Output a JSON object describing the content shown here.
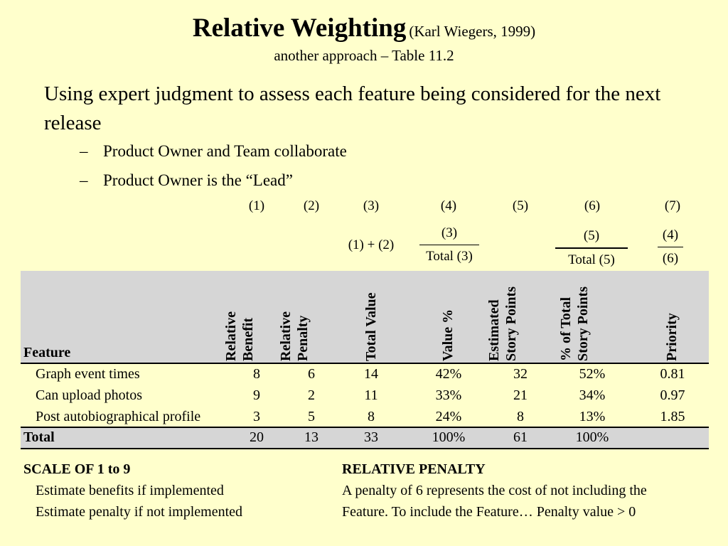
{
  "title": {
    "main": "Relative Weighting",
    "citation": "(Karl Wiegers, 1999)",
    "subtitle": "another approach – Table 11.2"
  },
  "intro": {
    "lead": "Using expert judgment to assess each feature being considered for the next release",
    "bullets": [
      "Product Owner and Team collaborate",
      "Product Owner is the “Lead”"
    ]
  },
  "columns": {
    "numbers": [
      "(1)",
      "(2)",
      "(3)",
      "(4)",
      "(5)",
      "(6)",
      "(7)"
    ],
    "formula_3": "(1) + (2)",
    "formula_4": {
      "num": "(3)",
      "den": "Total (3)"
    },
    "formula_6": {
      "num": "(5)",
      "den": "Total (5)"
    },
    "formula_7": {
      "num": "(4)",
      "den": "(6)"
    }
  },
  "table": {
    "headers": {
      "feature": "Feature",
      "relative_benefit": [
        "Relative",
        "Benefit"
      ],
      "relative_penalty": [
        "Relative",
        "Penalty"
      ],
      "total_value": "Total Value",
      "value_pct": "Value %",
      "estimated_story_points": [
        "Estimated",
        "Story Points"
      ],
      "pct_total_story_points": [
        "% of Total",
        "Story Points"
      ],
      "priority": "Priority"
    },
    "rows": [
      {
        "feature": "Graph event times",
        "benefit": "8",
        "penalty": "6",
        "total": "14",
        "value_pct": "42%",
        "points": "32",
        "pct_points": "52%",
        "priority": "0.81"
      },
      {
        "feature": "Can upload photos",
        "benefit": "9",
        "penalty": "2",
        "total": "11",
        "value_pct": "33%",
        "points": "21",
        "pct_points": "34%",
        "priority": "0.97"
      },
      {
        "feature": "Post autobiographical profile",
        "benefit": "3",
        "penalty": "5",
        "total": "8",
        "value_pct": "24%",
        "points": "8",
        "pct_points": "13%",
        "priority": "1.85"
      }
    ],
    "total_row": {
      "label": "Total",
      "benefit": "20",
      "penalty": "13",
      "total": "33",
      "value_pct": "100%",
      "points": "61",
      "pct_points": "100%",
      "priority": ""
    }
  },
  "notes": {
    "scale_title": "SCALE OF 1 to 9",
    "scale_lines": [
      "Estimate benefits if implemented",
      "Estimate penalty if not implemented"
    ],
    "penalty_title": "RELATIVE PENALTY",
    "penalty_lines": [
      "A penalty of 6 represents the cost of not including the",
      "Feature. To include the Feature… Penalty value > 0"
    ]
  }
}
